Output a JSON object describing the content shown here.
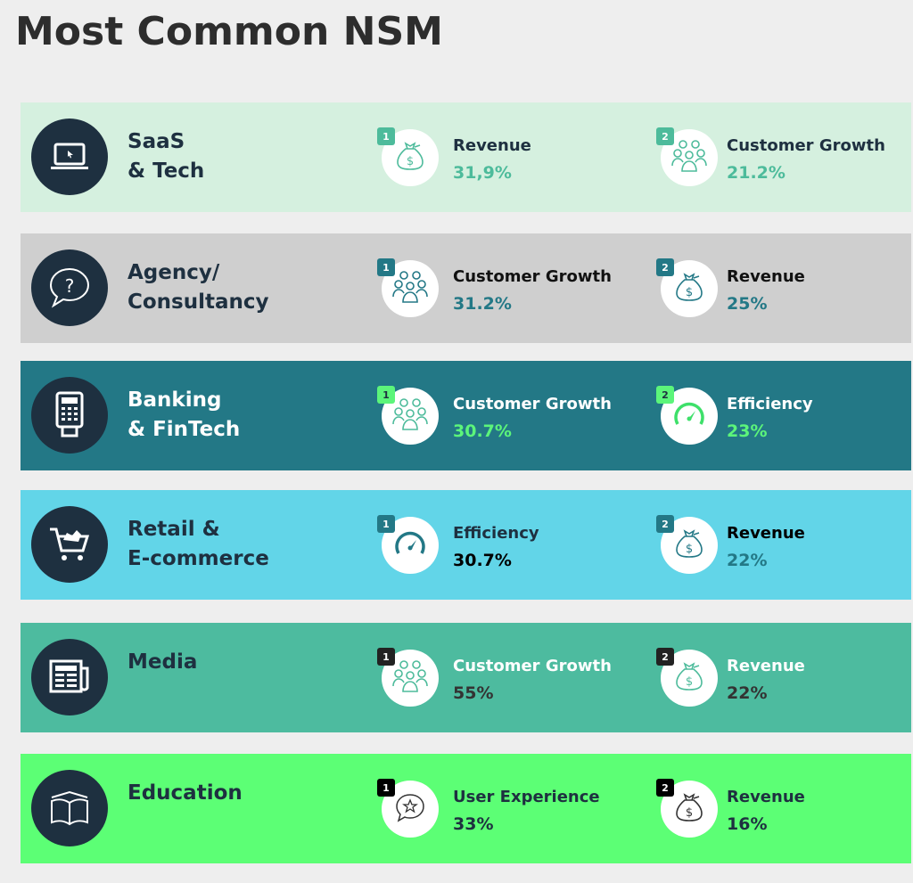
{
  "title": "Most Common NSM",
  "rows": [
    {
      "sector": "SaaS\n& Tech",
      "icon": "laptop-icon",
      "bg": "#d5f0df",
      "label_color": "#1e3040",
      "metrics": [
        {
          "rank": "1",
          "name": "Revenue",
          "value": "31,9%",
          "icon": "money-bag-icon",
          "badge": "#4dbb9b",
          "badge_text": "#fff",
          "title_color": "#1e3040",
          "value_color": "#4dbb9b",
          "icon_color": "#4dbb9b"
        },
        {
          "rank": "2",
          "name": "Customer Growth",
          "value": "21.2%",
          "icon": "people-icon",
          "badge": "#4dbb9b",
          "badge_text": "#fff",
          "title_color": "#1e3040",
          "value_color": "#4dbb9b",
          "icon_color": "#4dbb9b"
        }
      ]
    },
    {
      "sector": "Agency/\nConsultancy",
      "icon": "question-bubble-icon",
      "bg": "#cfcfcf",
      "label_color": "#1e3040",
      "metrics": [
        {
          "rank": "1",
          "name": "Customer Growth",
          "value": "31.2%",
          "icon": "people-icon",
          "badge": "#237886",
          "badge_text": "#fff",
          "title_color": "#111",
          "value_color": "#237886",
          "icon_color": "#237886"
        },
        {
          "rank": "2",
          "name": "Revenue",
          "value": "25%",
          "icon": "money-bag-icon",
          "badge": "#237886",
          "badge_text": "#fff",
          "title_color": "#111",
          "value_color": "#237886",
          "icon_color": "#237886"
        }
      ]
    },
    {
      "sector": "Banking\n& FinTech",
      "icon": "card-terminal-icon",
      "bg": "#237886",
      "label_color": "#ffffff",
      "metrics": [
        {
          "rank": "1",
          "name": "Customer Growth",
          "value": "30.7%",
          "icon": "people-icon",
          "badge": "#5cf57a",
          "badge_text": "#1e3040",
          "title_color": "#ffffff",
          "value_color": "#5cf57a",
          "icon_color": "#4dbb9b"
        },
        {
          "rank": "2",
          "name": "Efficiency",
          "value": "23%",
          "icon": "speedometer-icon",
          "badge": "#5cf57a",
          "badge_text": "#1e3040",
          "title_color": "#ffffff",
          "value_color": "#5cf57a",
          "icon_color": "#3ee06a"
        }
      ]
    },
    {
      "sector": "Retail &\nE-commerce",
      "icon": "shopping-cart-icon",
      "bg": "#62d5e8",
      "label_color": "#1e3040",
      "metrics": [
        {
          "rank": "1",
          "name": "Efficiency",
          "value": "30.7%",
          "icon": "speedometer-icon",
          "badge": "#237886",
          "badge_text": "#fff",
          "title_color": "#1e3040",
          "value_color": "#000000",
          "icon_color": "#237886"
        },
        {
          "rank": "2",
          "name": "Revenue",
          "value": "22%",
          "icon": "money-bag-icon",
          "badge": "#237886",
          "badge_text": "#fff",
          "title_color": "#000000",
          "value_color": "#237886",
          "icon_color": "#237886"
        }
      ]
    },
    {
      "sector": "Media",
      "icon": "newspaper-icon",
      "bg": "#4dbb9f",
      "label_color": "#1e3040",
      "metrics": [
        {
          "rank": "1",
          "name": "Customer Growth",
          "value": "55%",
          "icon": "people-icon",
          "badge": "#222222",
          "badge_text": "#fff",
          "title_color": "#ffffff",
          "value_color": "#333333",
          "icon_color": "#4dbb9b"
        },
        {
          "rank": "2",
          "name": "Revenue",
          "value": "22%",
          "icon": "money-bag-icon",
          "badge": "#222222",
          "badge_text": "#fff",
          "title_color": "#ffffff",
          "value_color": "#333333",
          "icon_color": "#4dbb9b"
        }
      ]
    },
    {
      "sector": "Education",
      "icon": "open-book-icon",
      "bg": "#5cff75",
      "label_color": "#1e3040",
      "metrics": [
        {
          "rank": "1",
          "name": "User Experience",
          "value": "33%",
          "icon": "star-bubble-icon",
          "badge": "#000000",
          "badge_text": "#fff",
          "title_color": "#1e3040",
          "value_color": "#1e3040",
          "icon_color": "#333333"
        },
        {
          "rank": "2",
          "name": "Revenue",
          "value": "16%",
          "icon": "money-bag-icon",
          "badge": "#000000",
          "badge_text": "#fff",
          "title_color": "#1e3040",
          "value_color": "#1e3040",
          "icon_color": "#333333"
        }
      ]
    }
  ]
}
